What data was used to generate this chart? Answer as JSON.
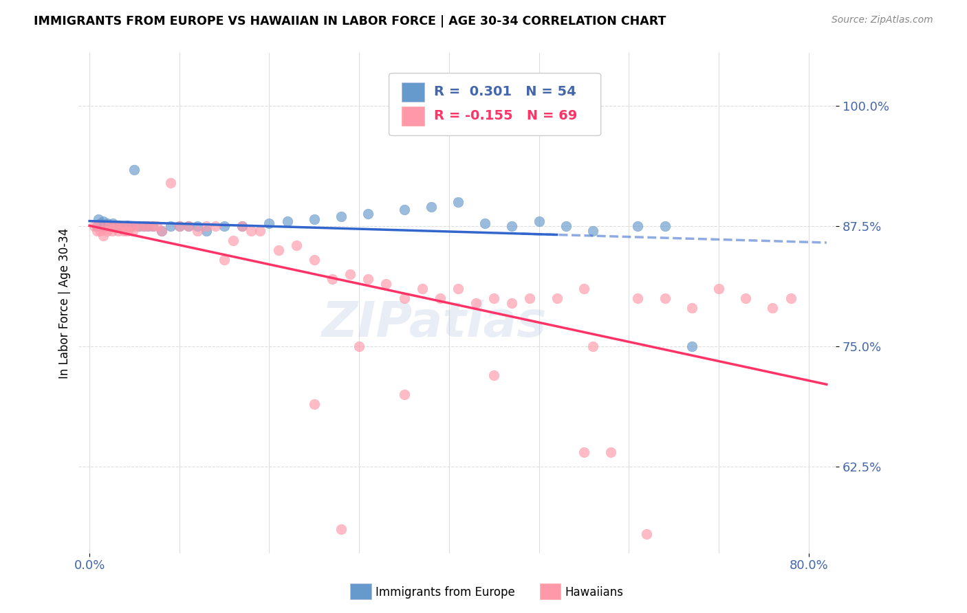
{
  "title": "IMMIGRANTS FROM EUROPE VS HAWAIIAN IN LABOR FORCE | AGE 30-34 CORRELATION CHART",
  "source_text": "Source: ZipAtlas.com",
  "ylabel": "In Labor Force | Age 30-34",
  "yticks": [
    0.625,
    0.75,
    0.875,
    1.0
  ],
  "ytick_labels": [
    "62.5%",
    "75.0%",
    "87.5%",
    "100.0%"
  ],
  "watermark": "ZIPatlas",
  "blue_color": "#6699CC",
  "pink_color": "#FF99AA",
  "blue_line_color": "#3366CC",
  "pink_line_color": "#FF3366",
  "axis_color": "#4466AA",
  "grid_color": "#DDDDDD",
  "blue_x": [
    0.008,
    0.01,
    0.012,
    0.013,
    0.015,
    0.016,
    0.018,
    0.019,
    0.02,
    0.021,
    0.022,
    0.023,
    0.025,
    0.026,
    0.027,
    0.028,
    0.03,
    0.032,
    0.034,
    0.036,
    0.038,
    0.04,
    0.042,
    0.044,
    0.046,
    0.05,
    0.055,
    0.06,
    0.065,
    0.07,
    0.08,
    0.09,
    0.1,
    0.11,
    0.12,
    0.13,
    0.15,
    0.17,
    0.2,
    0.22,
    0.25,
    0.28,
    0.31,
    0.35,
    0.38,
    0.41,
    0.44,
    0.47,
    0.5,
    0.53,
    0.56,
    0.61,
    0.64,
    0.67
  ],
  "blue_y": [
    0.875,
    0.882,
    0.878,
    0.875,
    0.88,
    0.875,
    0.876,
    0.875,
    0.878,
    0.875,
    0.875,
    0.876,
    0.875,
    0.878,
    0.875,
    0.876,
    0.875,
    0.876,
    0.875,
    0.875,
    0.875,
    0.875,
    0.876,
    0.875,
    0.875,
    0.934,
    0.875,
    0.875,
    0.875,
    0.875,
    0.87,
    0.875,
    0.875,
    0.875,
    0.875,
    0.87,
    0.875,
    0.875,
    0.878,
    0.88,
    0.882,
    0.885,
    0.888,
    0.892,
    0.895,
    0.9,
    0.878,
    0.875,
    0.88,
    0.875,
    0.87,
    0.875,
    0.875,
    0.75
  ],
  "pink_x": [
    0.005,
    0.008,
    0.01,
    0.012,
    0.015,
    0.018,
    0.02,
    0.022,
    0.025,
    0.028,
    0.03,
    0.032,
    0.035,
    0.038,
    0.04,
    0.042,
    0.045,
    0.048,
    0.05,
    0.055,
    0.06,
    0.065,
    0.07,
    0.075,
    0.08,
    0.09,
    0.1,
    0.11,
    0.12,
    0.13,
    0.14,
    0.15,
    0.16,
    0.17,
    0.18,
    0.19,
    0.21,
    0.23,
    0.25,
    0.27,
    0.29,
    0.31,
    0.33,
    0.35,
    0.37,
    0.39,
    0.41,
    0.43,
    0.45,
    0.47,
    0.49,
    0.52,
    0.55,
    0.58,
    0.61,
    0.64,
    0.67,
    0.7,
    0.73,
    0.76,
    0.78,
    0.25,
    0.35,
    0.45,
    0.55,
    0.28,
    0.3,
    0.56,
    0.62
  ],
  "pink_y": [
    0.875,
    0.87,
    0.875,
    0.87,
    0.865,
    0.875,
    0.87,
    0.875,
    0.87,
    0.875,
    0.875,
    0.87,
    0.875,
    0.87,
    0.875,
    0.87,
    0.875,
    0.87,
    0.875,
    0.875,
    0.875,
    0.875,
    0.875,
    0.875,
    0.87,
    0.92,
    0.875,
    0.875,
    0.87,
    0.875,
    0.875,
    0.84,
    0.86,
    0.875,
    0.87,
    0.87,
    0.85,
    0.855,
    0.84,
    0.82,
    0.825,
    0.82,
    0.815,
    0.8,
    0.81,
    0.8,
    0.81,
    0.795,
    0.8,
    0.795,
    0.8,
    0.8,
    0.81,
    0.64,
    0.8,
    0.8,
    0.79,
    0.81,
    0.8,
    0.79,
    0.8,
    0.69,
    0.7,
    0.72,
    0.64,
    0.56,
    0.75,
    0.75,
    0.555
  ]
}
